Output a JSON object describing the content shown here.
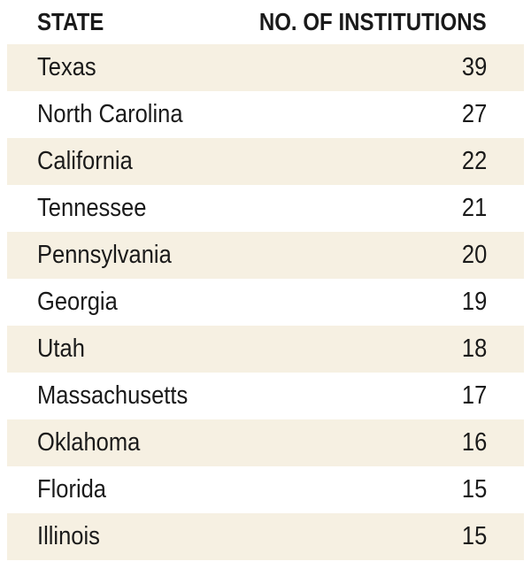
{
  "chart_data": {
    "type": "table",
    "columns": [
      "STATE",
      "NO. OF INSTITUTIONS"
    ],
    "rows": [
      {
        "state": "Texas",
        "count": 39
      },
      {
        "state": "North Carolina",
        "count": 27
      },
      {
        "state": "California",
        "count": 22
      },
      {
        "state": "Tennessee",
        "count": 21
      },
      {
        "state": "Pennsylvania",
        "count": 20
      },
      {
        "state": "Georgia",
        "count": 19
      },
      {
        "state": "Utah",
        "count": 18
      },
      {
        "state": "Massachusetts",
        "count": 17
      },
      {
        "state": "Oklahoma",
        "count": 16
      },
      {
        "state": "Florida",
        "count": 15
      },
      {
        "state": "Illinois",
        "count": 15
      }
    ],
    "stripe_color": "#f6f0e2"
  }
}
